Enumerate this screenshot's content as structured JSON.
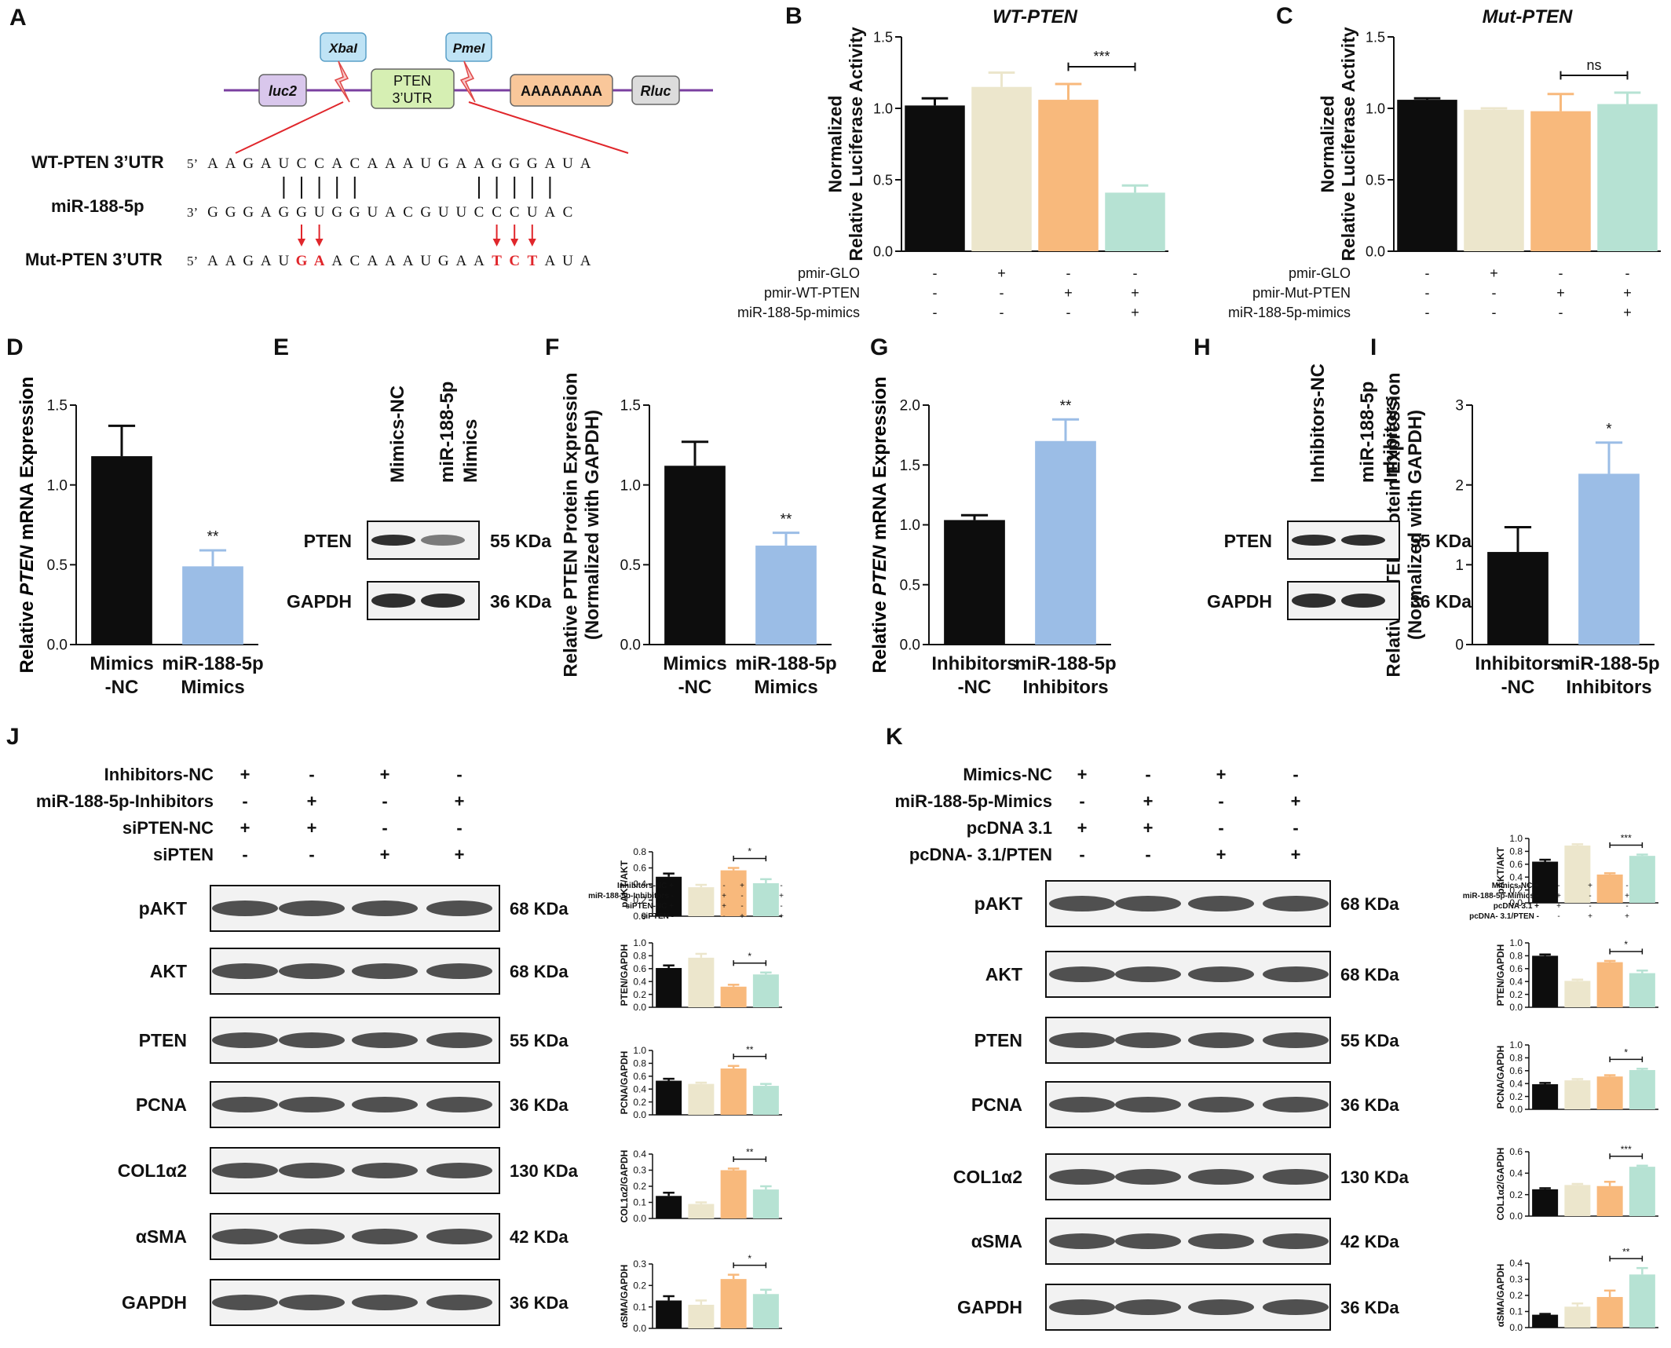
{
  "panelA": {
    "label": "A",
    "elements": [
      "luc2",
      "XbaI",
      "PTEN",
      "3’UTR",
      "PmeI",
      "AAAAAAAA",
      "Rluc"
    ],
    "wt_label": "WT-PTEN 3’UTR",
    "mir_label": "miR-188-5p",
    "mut_label": "Mut-PTEN 3’UTR",
    "wt_prefix": "5’",
    "wt_seq": "AAGAUCCACAAAUGAAGGGAUA",
    "mir_prefix": "3’",
    "mir_seq": "GGGAGGUGGUACGUUCCCUAC",
    "mut_prefix": "5’",
    "mut_seq": "AAGAUGAACAAAUGAATCTAUA",
    "mut_red": [
      5,
      6,
      16,
      17,
      18
    ]
  },
  "colors": {
    "black": "#0d0d0d",
    "beige": "#ece6cc",
    "orange": "#f8b97c",
    "mint": "#b6e2d3",
    "blue": "#9bbde6",
    "red": "#e0262b"
  },
  "chart_data": [
    {
      "id": "B",
      "type": "bar",
      "label": "B",
      "title": "WT-PTEN",
      "ylabel": [
        "Normalized",
        "Relative Luciferase Activity"
      ],
      "ylim": [
        0,
        1.5
      ],
      "yticks": [
        "0.0",
        "0.5",
        "1.0",
        "1.5"
      ],
      "values": [
        1.02,
        1.15,
        1.06,
        0.41
      ],
      "errors": [
        0.05,
        0.1,
        0.11,
        0.05
      ],
      "colors": [
        "black",
        "beige",
        "orange",
        "mint"
      ],
      "rows": [
        {
          "name": "pmir-GLO",
          "signs": [
            "-",
            "+",
            "-",
            "-"
          ]
        },
        {
          "name": "pmir-WT-PTEN",
          "signs": [
            "-",
            "-",
            "+",
            "+"
          ]
        },
        {
          "name": "miR-188-5p-mimics",
          "signs": [
            "-",
            "-",
            "-",
            "+"
          ]
        }
      ],
      "sig": {
        "from": 2,
        "to": 3,
        "text": "***"
      }
    },
    {
      "id": "C",
      "type": "bar",
      "label": "C",
      "title": "Mut-PTEN",
      "ylabel": [
        "Normalized",
        "Relative Luciferase Activity"
      ],
      "ylim": [
        0,
        1.5
      ],
      "yticks": [
        "0.0",
        "0.5",
        "1.0",
        "1.5"
      ],
      "values": [
        1.06,
        0.99,
        0.98,
        1.03
      ],
      "errors": [
        0.01,
        0.01,
        0.12,
        0.08
      ],
      "colors": [
        "black",
        "beige",
        "orange",
        "mint"
      ],
      "rows": [
        {
          "name": "pmir-GLO",
          "signs": [
            "-",
            "+",
            "-",
            "-"
          ]
        },
        {
          "name": "pmir-Mut-PTEN",
          "signs": [
            "-",
            "-",
            "+",
            "+"
          ]
        },
        {
          "name": "miR-188-5p-mimics",
          "signs": [
            "-",
            "-",
            "-",
            "+"
          ]
        }
      ],
      "sig": {
        "from": 2,
        "to": 3,
        "text": "ns"
      }
    },
    {
      "id": "D",
      "type": "bar",
      "label": "D",
      "ylabel_parts": [
        "Relative ",
        "PTEN",
        " mRNA Expression"
      ],
      "ylim": [
        0,
        1.5
      ],
      "yticks": [
        "0.0",
        "0.5",
        "1.0",
        "1.5"
      ],
      "values": [
        1.18,
        0.49
      ],
      "errors": [
        0.19,
        0.1
      ],
      "colors": [
        "black",
        "blue"
      ],
      "categories": [
        [
          "Mimics",
          "-NC"
        ],
        [
          "miR-188-5p",
          "Mimics"
        ]
      ],
      "stars": [
        null,
        "**"
      ]
    },
    {
      "id": "F",
      "type": "bar",
      "label": "F",
      "ylabel": [
        "Relative PTEN Protein Expression",
        "(Normalized with GAPDH)"
      ],
      "ylim": [
        0,
        1.5
      ],
      "yticks": [
        "0.0",
        "0.5",
        "1.0",
        "1.5"
      ],
      "values": [
        1.12,
        0.62
      ],
      "errors": [
        0.15,
        0.08
      ],
      "colors": [
        "black",
        "blue"
      ],
      "categories": [
        [
          "Mimics",
          "-NC"
        ],
        [
          "miR-188-5p",
          "Mimics"
        ]
      ],
      "stars": [
        null,
        "**"
      ]
    },
    {
      "id": "G",
      "type": "bar",
      "label": "G",
      "ylabel_parts": [
        "Relative ",
        "PTEN",
        " mRNA Expression"
      ],
      "ylim": [
        0,
        2.0
      ],
      "yticks": [
        "0.0",
        "0.5",
        "1.0",
        "1.5",
        "2.0"
      ],
      "values": [
        1.04,
        1.7
      ],
      "errors": [
        0.04,
        0.18
      ],
      "colors": [
        "black",
        "blue"
      ],
      "categories": [
        [
          "Inhibitors",
          "-NC"
        ],
        [
          "miR-188-5p",
          "Inhibitors"
        ]
      ],
      "stars": [
        null,
        "**"
      ]
    },
    {
      "id": "I",
      "type": "bar",
      "label": "I",
      "ylabel": [
        "Relative PTEN Protein Expression",
        "(Normalized with GAPDH)"
      ],
      "ylim": [
        0,
        3
      ],
      "yticks": [
        "0",
        "1",
        "2",
        "3"
      ],
      "values": [
        1.16,
        2.14
      ],
      "errors": [
        0.31,
        0.39
      ],
      "colors": [
        "black",
        "blue"
      ],
      "categories": [
        [
          "Inhibitors",
          "-NC"
        ],
        [
          "miR-188-5p",
          "Inhibitors"
        ]
      ],
      "stars": [
        null,
        "*"
      ]
    },
    {
      "id": "J1",
      "type": "bar",
      "ylabel": "pAKT/AKT",
      "ylim": [
        0,
        0.8
      ],
      "yticks": [
        "0.0",
        "0.2",
        "0.4",
        "0.6",
        "0.8"
      ],
      "values": [
        0.49,
        0.36,
        0.57,
        0.41
      ],
      "errors": [
        0.04,
        0.03,
        0.03,
        0.05
      ],
      "colors": [
        "black",
        "beige",
        "orange",
        "mint"
      ],
      "sig": {
        "from": 2,
        "to": 3,
        "text": "*"
      }
    },
    {
      "id": "J2",
      "type": "bar",
      "ylabel": "PTEN/GAPDH",
      "ylim": [
        0,
        1.0
      ],
      "yticks": [
        "0.0",
        "0.2",
        "0.4",
        "0.6",
        "0.8",
        "1.0"
      ],
      "values": [
        0.61,
        0.77,
        0.32,
        0.51
      ],
      "errors": [
        0.04,
        0.06,
        0.03,
        0.03
      ],
      "colors": [
        "black",
        "beige",
        "orange",
        "mint"
      ],
      "sig": {
        "from": 2,
        "to": 3,
        "text": "*"
      }
    },
    {
      "id": "J3",
      "type": "bar",
      "ylabel": "PCNA/GAPDH",
      "ylim": [
        0,
        1.0
      ],
      "yticks": [
        "0.0",
        "0.2",
        "0.4",
        "0.6",
        "0.8",
        "1.0"
      ],
      "values": [
        0.53,
        0.48,
        0.72,
        0.45
      ],
      "errors": [
        0.03,
        0.02,
        0.04,
        0.03
      ],
      "colors": [
        "black",
        "beige",
        "orange",
        "mint"
      ],
      "sig": {
        "from": 2,
        "to": 3,
        "text": "**"
      }
    },
    {
      "id": "J4",
      "type": "bar",
      "ylabel": "COL1α2/GAPDH",
      "ylim": [
        0,
        0.4
      ],
      "yticks": [
        "0.0",
        "0.1",
        "0.2",
        "0.3",
        "0.4"
      ],
      "values": [
        0.14,
        0.09,
        0.3,
        0.18
      ],
      "errors": [
        0.02,
        0.01,
        0.01,
        0.02
      ],
      "colors": [
        "black",
        "beige",
        "orange",
        "mint"
      ],
      "sig": {
        "from": 2,
        "to": 3,
        "text": "**"
      }
    },
    {
      "id": "J5",
      "type": "bar",
      "ylabel": "αSMA/GAPDH",
      "ylim": [
        0,
        0.3
      ],
      "yticks": [
        "0.0",
        "0.1",
        "0.2",
        "0.3"
      ],
      "values": [
        0.13,
        0.11,
        0.23,
        0.16
      ],
      "errors": [
        0.02,
        0.02,
        0.02,
        0.02
      ],
      "colors": [
        "black",
        "beige",
        "orange",
        "mint"
      ],
      "sig": {
        "from": 2,
        "to": 3,
        "text": "*"
      }
    },
    {
      "id": "K1",
      "type": "bar",
      "ylabel": "pAKT/AKT",
      "ylim": [
        0,
        1.0
      ],
      "yticks": [
        "0.0",
        "0.2",
        "0.4",
        "0.6",
        "0.8",
        "1.0"
      ],
      "values": [
        0.64,
        0.89,
        0.44,
        0.73
      ],
      "errors": [
        0.03,
        0.02,
        0.02,
        0.02
      ],
      "colors": [
        "black",
        "beige",
        "orange",
        "mint"
      ],
      "sig": {
        "from": 2,
        "to": 3,
        "text": "***"
      }
    },
    {
      "id": "K2",
      "type": "bar",
      "ylabel": "PTEN/GAPDH",
      "ylim": [
        0,
        1.0
      ],
      "yticks": [
        "0.0",
        "0.2",
        "0.4",
        "0.6",
        "0.8",
        "1.0"
      ],
      "values": [
        0.8,
        0.41,
        0.7,
        0.53
      ],
      "errors": [
        0.02,
        0.02,
        0.02,
        0.04
      ],
      "colors": [
        "black",
        "beige",
        "orange",
        "mint"
      ],
      "sig": {
        "from": 2,
        "to": 3,
        "text": "*"
      }
    },
    {
      "id": "K3",
      "type": "bar",
      "ylabel": "PCNA/GAPDH",
      "ylim": [
        0,
        1.0
      ],
      "yticks": [
        "0.0",
        "0.2",
        "0.4",
        "0.6",
        "0.8",
        "1.0"
      ],
      "values": [
        0.39,
        0.45,
        0.51,
        0.61
      ],
      "errors": [
        0.02,
        0.02,
        0.02,
        0.02
      ],
      "colors": [
        "black",
        "beige",
        "orange",
        "mint"
      ],
      "sig": {
        "from": 2,
        "to": 3,
        "text": "*"
      }
    },
    {
      "id": "K4",
      "type": "bar",
      "ylabel": "COL1α2/GAPDH",
      "ylim": [
        0,
        0.6
      ],
      "yticks": [
        "0.0",
        "0.2",
        "0.4",
        "0.6"
      ],
      "values": [
        0.25,
        0.29,
        0.28,
        0.46
      ],
      "errors": [
        0.01,
        0.01,
        0.04,
        0.01
      ],
      "colors": [
        "black",
        "beige",
        "orange",
        "mint"
      ],
      "sig": {
        "from": 2,
        "to": 3,
        "text": "***"
      }
    },
    {
      "id": "K5",
      "type": "bar",
      "ylabel": "αSMA/GAPDH",
      "ylim": [
        0,
        0.4
      ],
      "yticks": [
        "0.0",
        "0.1",
        "0.2",
        "0.3",
        "0.4"
      ],
      "values": [
        0.08,
        0.13,
        0.19,
        0.33
      ],
      "errors": [
        0.005,
        0.02,
        0.04,
        0.04
      ],
      "colors": [
        "black",
        "beige",
        "orange",
        "mint"
      ],
      "sig": {
        "from": 2,
        "to": 3,
        "text": "**"
      }
    }
  ],
  "blotsE": {
    "label": "E",
    "lanes": [
      "Mimics-NC",
      "miR-188-5p\nMimics"
    ],
    "rows": [
      {
        "name": "PTEN",
        "size": "55 KDa"
      },
      {
        "name": "GAPDH",
        "size": "36 KDa"
      }
    ]
  },
  "blotsH": {
    "label": "H",
    "lanes": [
      "Inhibitors-NC",
      "miR-188-5p\nInhibitors"
    ],
    "rows": [
      {
        "name": "PTEN",
        "size": "55 KDa"
      },
      {
        "name": "GAPDH",
        "size": "36 KDa"
      }
    ]
  },
  "blotsJ": {
    "label": "J",
    "conditions": [
      {
        "name": "Inhibitors-NC",
        "signs": [
          "+",
          "-",
          "+",
          "-"
        ]
      },
      {
        "name": "miR-188-5p-Inhibitors",
        "signs": [
          "-",
          "+",
          "-",
          "+"
        ]
      },
      {
        "name": "siPTEN-NC",
        "signs": [
          "+",
          "+",
          "-",
          "-"
        ]
      },
      {
        "name": "siPTEN",
        "signs": [
          "-",
          "-",
          "+",
          "+"
        ]
      }
    ],
    "rows": [
      {
        "name": "pAKT",
        "size": "68 KDa"
      },
      {
        "name": "AKT",
        "size": "68 KDa"
      },
      {
        "name": "PTEN",
        "size": "55 KDa"
      },
      {
        "name": "PCNA",
        "size": "36 KDa"
      },
      {
        "name": "COL1α2",
        "size": "130 KDa"
      },
      {
        "name": "αSMA",
        "size": "42 KDa"
      },
      {
        "name": "GAPDH",
        "size": "36 KDa"
      }
    ],
    "legend": [
      {
        "name": "Inhibitors-NC",
        "signs": [
          "+",
          "-",
          "+",
          "-"
        ]
      },
      {
        "name": "miR-188-5p-Inhibitors",
        "signs": [
          "-",
          "+",
          "-",
          "+"
        ]
      },
      {
        "name": "siPTEN-NC",
        "signs": [
          "+",
          "+",
          "-",
          "-"
        ]
      },
      {
        "name": "siPTEN",
        "signs": [
          "-",
          "-",
          "+",
          "+"
        ]
      }
    ]
  },
  "blotsK": {
    "label": "K",
    "conditions": [
      {
        "name": "Mimics-NC",
        "signs": [
          "+",
          "-",
          "+",
          "-"
        ]
      },
      {
        "name": "miR-188-5p-Mimics",
        "signs": [
          "-",
          "+",
          "-",
          "+"
        ]
      },
      {
        "name": "pcDNA 3.1",
        "signs": [
          "+",
          "+",
          "-",
          "-"
        ]
      },
      {
        "name": "pcDNA- 3.1/PTEN",
        "signs": [
          "-",
          "-",
          "+",
          "+"
        ]
      }
    ],
    "rows": [
      {
        "name": "pAKT",
        "size": "68 KDa"
      },
      {
        "name": "AKT",
        "size": "68 KDa"
      },
      {
        "name": "PTEN",
        "size": "55 KDa"
      },
      {
        "name": "PCNA",
        "size": "36 KDa"
      },
      {
        "name": "COL1α2",
        "size": "130 KDa"
      },
      {
        "name": "αSMA",
        "size": "42 KDa"
      },
      {
        "name": "GAPDH",
        "size": "36 KDa"
      }
    ],
    "legend": [
      {
        "name": "Mimics-NC",
        "signs": [
          "+",
          "-",
          "+",
          "-"
        ]
      },
      {
        "name": "miR-188-5p-Mimics",
        "signs": [
          "-",
          "+",
          "-",
          "+"
        ]
      },
      {
        "name": "pcDNA 3.1",
        "signs": [
          "+",
          "+",
          "-",
          "-"
        ]
      },
      {
        "name": "pcDNA- 3.1/PTEN",
        "signs": [
          "-",
          "-",
          "+",
          "+"
        ]
      }
    ]
  }
}
